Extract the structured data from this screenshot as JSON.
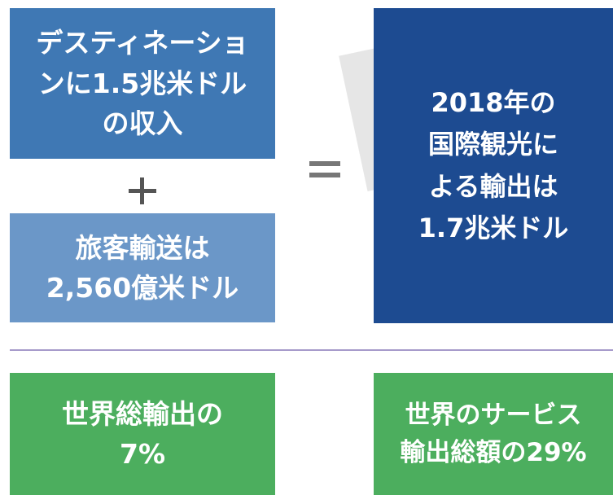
{
  "boxes": [
    {
      "lines": [
        "デスティネーショ",
        "ンに1.5兆米ドル",
        "の収入"
      ]
    },
    {
      "lines": [
        "旅客輸送は",
        "2,560億米ドル"
      ]
    },
    {
      "lines": [
        "2018年の",
        "国際観光に",
        "よる輸出は",
        "1.7兆米ドル"
      ]
    },
    {
      "lines": [
        "世界総輸出の",
        "7%"
      ]
    },
    {
      "lines": [
        "世界のサービス",
        "輸出総額の29%"
      ]
    }
  ]
}
